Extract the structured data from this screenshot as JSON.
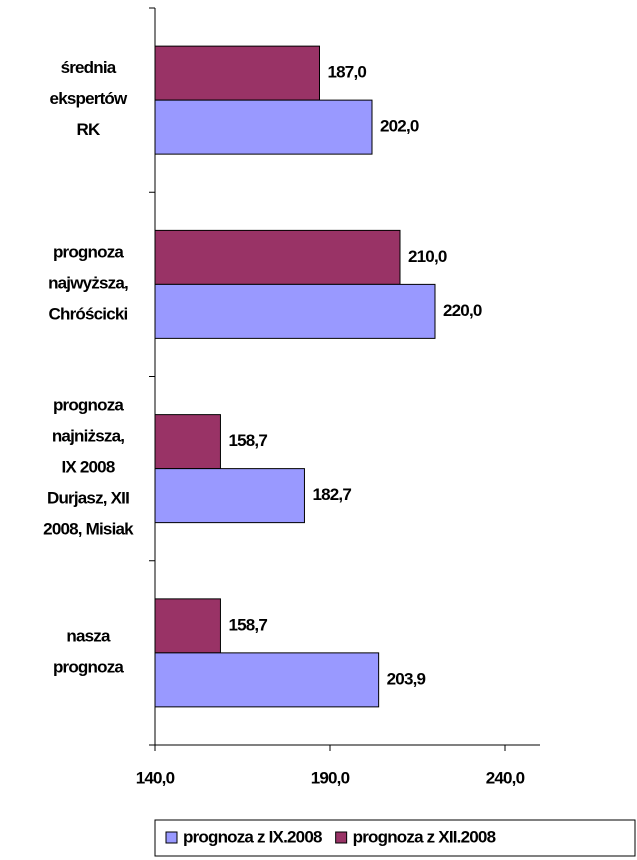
{
  "chart_data": {
    "type": "barh",
    "categories": [
      "średnia\nekspertów\nRK",
      "prognoza\nnajwyższa,\nChróścicki",
      "prognoza\nnajniższa,\nIX 2008\nDurjasz, XII\n2008, Misiak",
      "nasza\nprognoza"
    ],
    "series": [
      {
        "name": "prognoza z IX.2008",
        "color": "#9999ff",
        "values": [
          202.0,
          220.0,
          182.7,
          203.9
        ],
        "value_labels": [
          "202,0",
          "220,0",
          "182,7",
          "203,9"
        ]
      },
      {
        "name": "prognoza z XII.2008",
        "color": "#993366",
        "values": [
          187.0,
          210.0,
          158.7,
          158.7
        ],
        "value_labels": [
          "187,0",
          "210,0",
          "158,7",
          "158,7"
        ]
      }
    ],
    "xlim": [
      140,
      250
    ],
    "xticks": [
      {
        "value": 140,
        "label": "140,0"
      },
      {
        "value": 190,
        "label": "190,0"
      },
      {
        "value": 240,
        "label": "240,0"
      }
    ],
    "legend": "bottom"
  }
}
